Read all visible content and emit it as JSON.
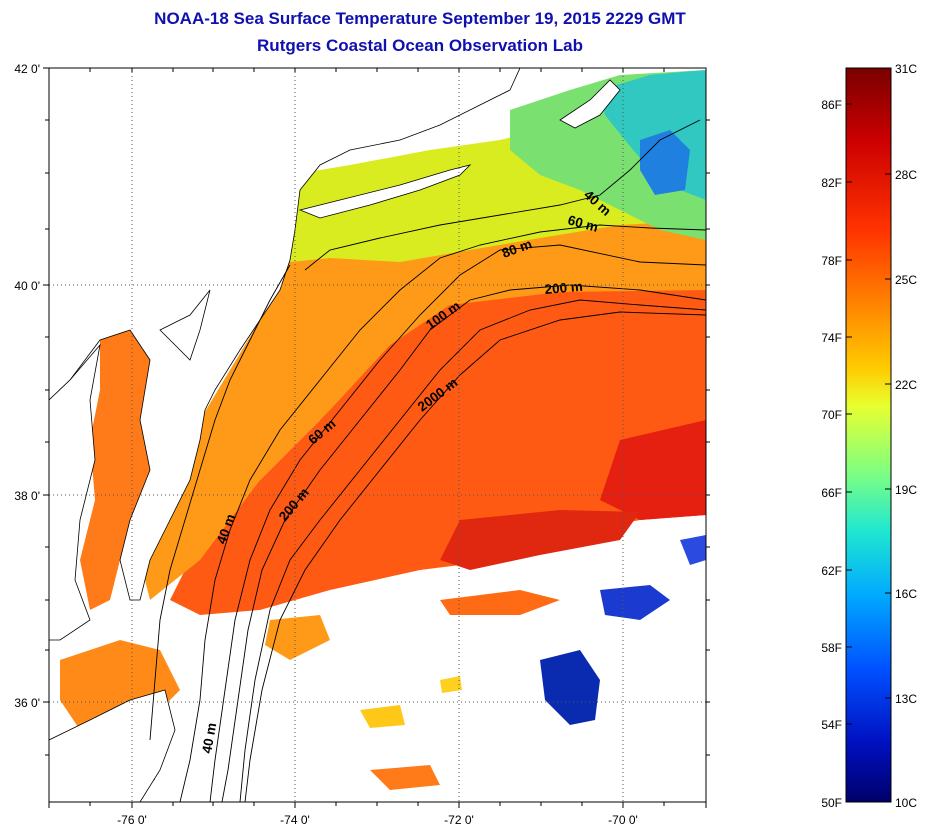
{
  "title": {
    "line1": "NOAA-18 Sea Surface Temperature September 19, 2015 2229 GMT",
    "line2": "Rutgers Coastal Ocean Observation Lab"
  },
  "map": {
    "lat_labels": [
      "42 0'",
      "40 0'",
      "38 0'",
      "36 0'"
    ],
    "lon_labels": [
      "-76 0'",
      "-74 0'",
      "-72 0'",
      "-70 0'"
    ],
    "contour_labels": [
      "40 m",
      "60 m",
      "80 m",
      "200 m",
      "100 m",
      "2000 m",
      "60 m",
      "200 m",
      "40 m",
      "40 m"
    ]
  },
  "colorbar": {
    "fahrenheit_labels": [
      "86F",
      "82F",
      "78F",
      "74F",
      "70F",
      "66F",
      "62F",
      "58F",
      "54F",
      "50F"
    ],
    "celsius_labels": [
      "31C",
      "28C",
      "25C",
      "22C",
      "19C",
      "16C",
      "13C",
      "10C"
    ],
    "colors": [
      "#7a0000",
      "#cc0000",
      "#ff3300",
      "#ff7a00",
      "#ffcc00",
      "#e8ff30",
      "#80ff80",
      "#20e8d0",
      "#00a8ff",
      "#0050ff",
      "#0010c0",
      "#00006a"
    ]
  }
}
